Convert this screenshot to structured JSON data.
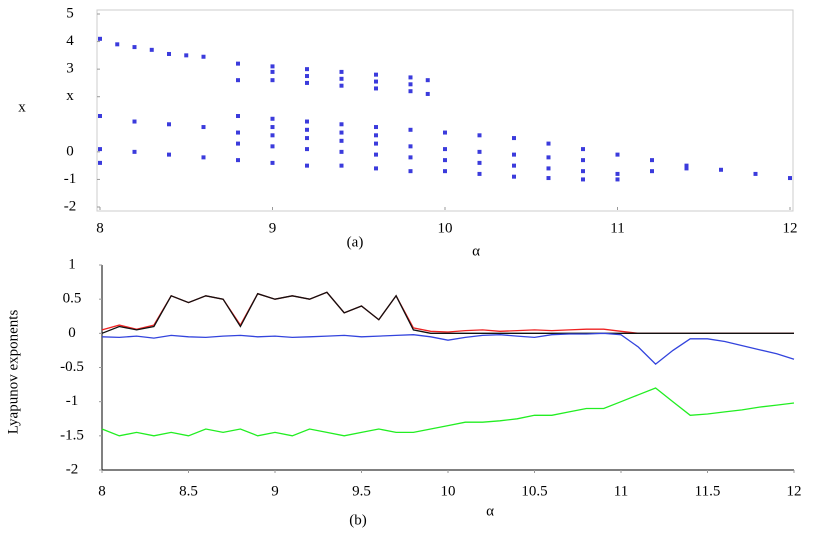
{
  "chart_data": [
    {
      "type": "scatter",
      "caption": "(a)",
      "xlabel": "α",
      "ylabel": "x",
      "xlim": [
        8,
        12
      ],
      "ylim": [
        -2,
        5
      ],
      "xticks": [
        8,
        9,
        10,
        11,
        12
      ],
      "yticks": [
        5,
        4,
        3,
        {
          "value": 2,
          "label": "x"
        },
        0,
        -1,
        -2
      ],
      "series": [
        {
          "color": "#3b3bdc",
          "x": [
            8.0,
            8.1,
            8.2,
            8.3,
            8.4,
            8.5,
            8.6,
            8.8,
            8.8,
            9.0,
            9.0,
            9.0,
            9.2,
            9.2,
            9.2,
            9.4,
            9.4,
            9.4,
            9.6,
            9.6,
            9.6,
            9.8,
            9.8,
            9.8,
            9.9,
            9.9,
            8.0,
            8.2,
            8.4,
            8.6,
            8.8,
            8.8,
            9.0,
            9.0,
            9.0,
            9.2,
            9.2,
            9.2,
            9.4,
            9.4,
            9.4,
            9.6,
            9.6,
            9.6,
            9.8,
            9.8,
            10.0,
            10.0,
            10.2,
            10.2,
            10.4,
            10.4,
            10.6,
            10.6,
            10.8,
            10.8,
            11.0,
            11.2,
            11.4,
            11.6,
            11.8,
            12.0,
            8.0,
            8.0,
            8.2,
            8.4,
            8.6,
            8.8,
            8.8,
            9.0,
            9.0,
            9.2,
            9.2,
            9.4,
            9.4,
            9.6,
            9.6,
            9.8,
            9.8,
            10.0,
            10.0,
            10.2,
            10.2,
            10.4,
            10.4,
            10.6,
            10.6,
            10.8,
            10.8,
            11.0,
            11.0,
            11.2,
            11.4
          ],
          "values": [
            4.1,
            3.9,
            3.8,
            3.7,
            3.55,
            3.5,
            3.45,
            3.2,
            2.6,
            3.1,
            2.6,
            2.9,
            3.0,
            2.5,
            2.75,
            2.9,
            2.4,
            2.65,
            2.8,
            2.3,
            2.55,
            2.7,
            2.2,
            2.45,
            2.6,
            2.1,
            1.3,
            1.1,
            1.0,
            0.9,
            1.3,
            0.7,
            1.2,
            0.6,
            0.9,
            1.1,
            0.5,
            0.8,
            1.0,
            0.4,
            0.7,
            0.9,
            0.3,
            0.6,
            0.8,
            0.2,
            0.7,
            0.1,
            0.6,
            0.0,
            0.5,
            -0.1,
            0.3,
            -0.2,
            0.1,
            -0.3,
            -0.1,
            -0.3,
            -0.5,
            -0.65,
            -0.8,
            -0.95,
            0.1,
            -0.4,
            0.0,
            -0.1,
            -0.2,
            0.3,
            -0.3,
            0.2,
            -0.4,
            0.1,
            -0.5,
            0.0,
            -0.5,
            -0.1,
            -0.6,
            -0.2,
            -0.7,
            -0.3,
            -0.7,
            -0.4,
            -0.8,
            -0.5,
            -0.9,
            -0.6,
            -0.95,
            -0.7,
            -1.0,
            -0.8,
            -1.0,
            -0.7,
            -0.6
          ]
        }
      ]
    },
    {
      "type": "line",
      "caption": "(b)",
      "xlabel": "α",
      "ylabel": "Lyapunov exponents",
      "xlim": [
        8,
        12
      ],
      "ylim": [
        -2,
        1
      ],
      "xticks": [
        8,
        8.5,
        9,
        9.5,
        10,
        10.5,
        11,
        11.5,
        12
      ],
      "yticks": [
        1,
        0.5,
        0,
        -0.5,
        -1,
        -1.5,
        -2
      ],
      "x": [
        8.0,
        8.1,
        8.2,
        8.3,
        8.4,
        8.5,
        8.6,
        8.7,
        8.8,
        8.9,
        9.0,
        9.1,
        9.2,
        9.3,
        9.4,
        9.5,
        9.6,
        9.7,
        9.8,
        9.9,
        10.0,
        10.1,
        10.2,
        10.3,
        10.4,
        10.5,
        10.6,
        10.7,
        10.8,
        10.9,
        11.0,
        11.1,
        11.2,
        11.3,
        11.4,
        11.5,
        11.6,
        11.7,
        11.8,
        11.9,
        12.0
      ],
      "series": [
        {
          "color": "#ee2222",
          "values": [
            0.05,
            0.12,
            0.06,
            0.12,
            0.55,
            0.45,
            0.55,
            0.5,
            0.12,
            0.58,
            0.5,
            0.55,
            0.5,
            0.6,
            0.3,
            0.4,
            0.2,
            0.55,
            0.08,
            0.03,
            0.02,
            0.04,
            0.05,
            0.03,
            0.04,
            0.05,
            0.04,
            0.05,
            0.06,
            0.06,
            0.03,
            0,
            0,
            0,
            0,
            0,
            0,
            0,
            0,
            0,
            0
          ]
        },
        {
          "color": "#111111",
          "values": [
            0,
            0.1,
            0.05,
            0.1,
            0.55,
            0.45,
            0.55,
            0.5,
            0.1,
            0.58,
            0.5,
            0.55,
            0.5,
            0.6,
            0.3,
            0.4,
            0.2,
            0.55,
            0.05,
            0,
            0,
            0,
            0,
            0,
            0,
            0,
            0,
            0,
            0,
            0,
            0,
            0,
            0,
            0,
            0,
            0,
            0,
            0,
            0,
            0,
            0
          ]
        },
        {
          "color": "#3344dd",
          "values": [
            -0.05,
            -0.06,
            -0.04,
            -0.07,
            -0.03,
            -0.05,
            -0.06,
            -0.04,
            -0.03,
            -0.05,
            -0.04,
            -0.06,
            -0.05,
            -0.04,
            -0.03,
            -0.05,
            -0.04,
            -0.03,
            -0.02,
            -0.05,
            -0.1,
            -0.06,
            -0.03,
            -0.02,
            -0.04,
            -0.06,
            -0.02,
            -0.01,
            -0.01,
            0,
            -0.02,
            -0.2,
            -0.45,
            -0.25,
            -0.08,
            -0.08,
            -0.12,
            -0.18,
            -0.24,
            -0.3,
            -0.38
          ]
        },
        {
          "color": "#22ee22",
          "values": [
            -1.4,
            -1.5,
            -1.45,
            -1.5,
            -1.45,
            -1.5,
            -1.4,
            -1.45,
            -1.4,
            -1.5,
            -1.45,
            -1.5,
            -1.4,
            -1.45,
            -1.5,
            -1.45,
            -1.4,
            -1.45,
            -1.45,
            -1.4,
            -1.35,
            -1.3,
            -1.3,
            -1.28,
            -1.25,
            -1.2,
            -1.2,
            -1.15,
            -1.1,
            -1.1,
            -1.0,
            -0.9,
            -0.8,
            -1.0,
            -1.2,
            -1.18,
            -1.15,
            -1.12,
            -1.08,
            -1.05,
            -1.02
          ]
        }
      ]
    }
  ]
}
